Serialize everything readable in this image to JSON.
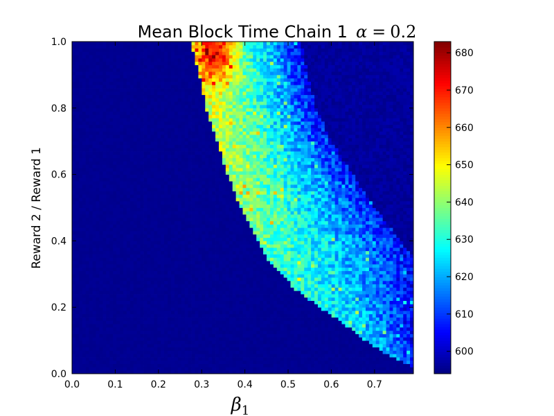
{
  "chart_data": {
    "type": "heatmap",
    "title": {
      "text": "Mean Block Time Chain 1",
      "math_symbol": "α",
      "math_equals": "=",
      "math_value": "0.2"
    },
    "xlabel": {
      "symbol": "β",
      "subscript": "1"
    },
    "ylabel": "Reward 2 / Reward 1",
    "x_range": [
      0.0,
      0.79
    ],
    "y_range": [
      0.0,
      1.0
    ],
    "x_ticks": [
      "0.0",
      "0.1",
      "0.2",
      "0.3",
      "0.4",
      "0.5",
      "0.6",
      "0.7"
    ],
    "y_ticks": [
      "0.0",
      "0.2",
      "0.4",
      "0.6",
      "0.8",
      "1.0"
    ],
    "grid": false,
    "colormap": "jet",
    "colorbar": {
      "range": [
        594,
        683
      ],
      "ticks": [
        "600",
        "610",
        "620",
        "630",
        "640",
        "650",
        "660",
        "670",
        "680"
      ]
    },
    "description_of_values": {
      "background_value": 595,
      "band_lower_boundary": "x ≈ 0.28 at y=1.0, 0.38 at y=0.5, 0.63 at y=0.15, 0.79 at y=0.02",
      "band_upper_boundary": "x ≈ 0.53 at y=1.0, 0.60 at y=0.7, 0.79 at y=0.35",
      "peak_value": 682,
      "peak_location": [
        0.34,
        0.97
      ]
    }
  }
}
